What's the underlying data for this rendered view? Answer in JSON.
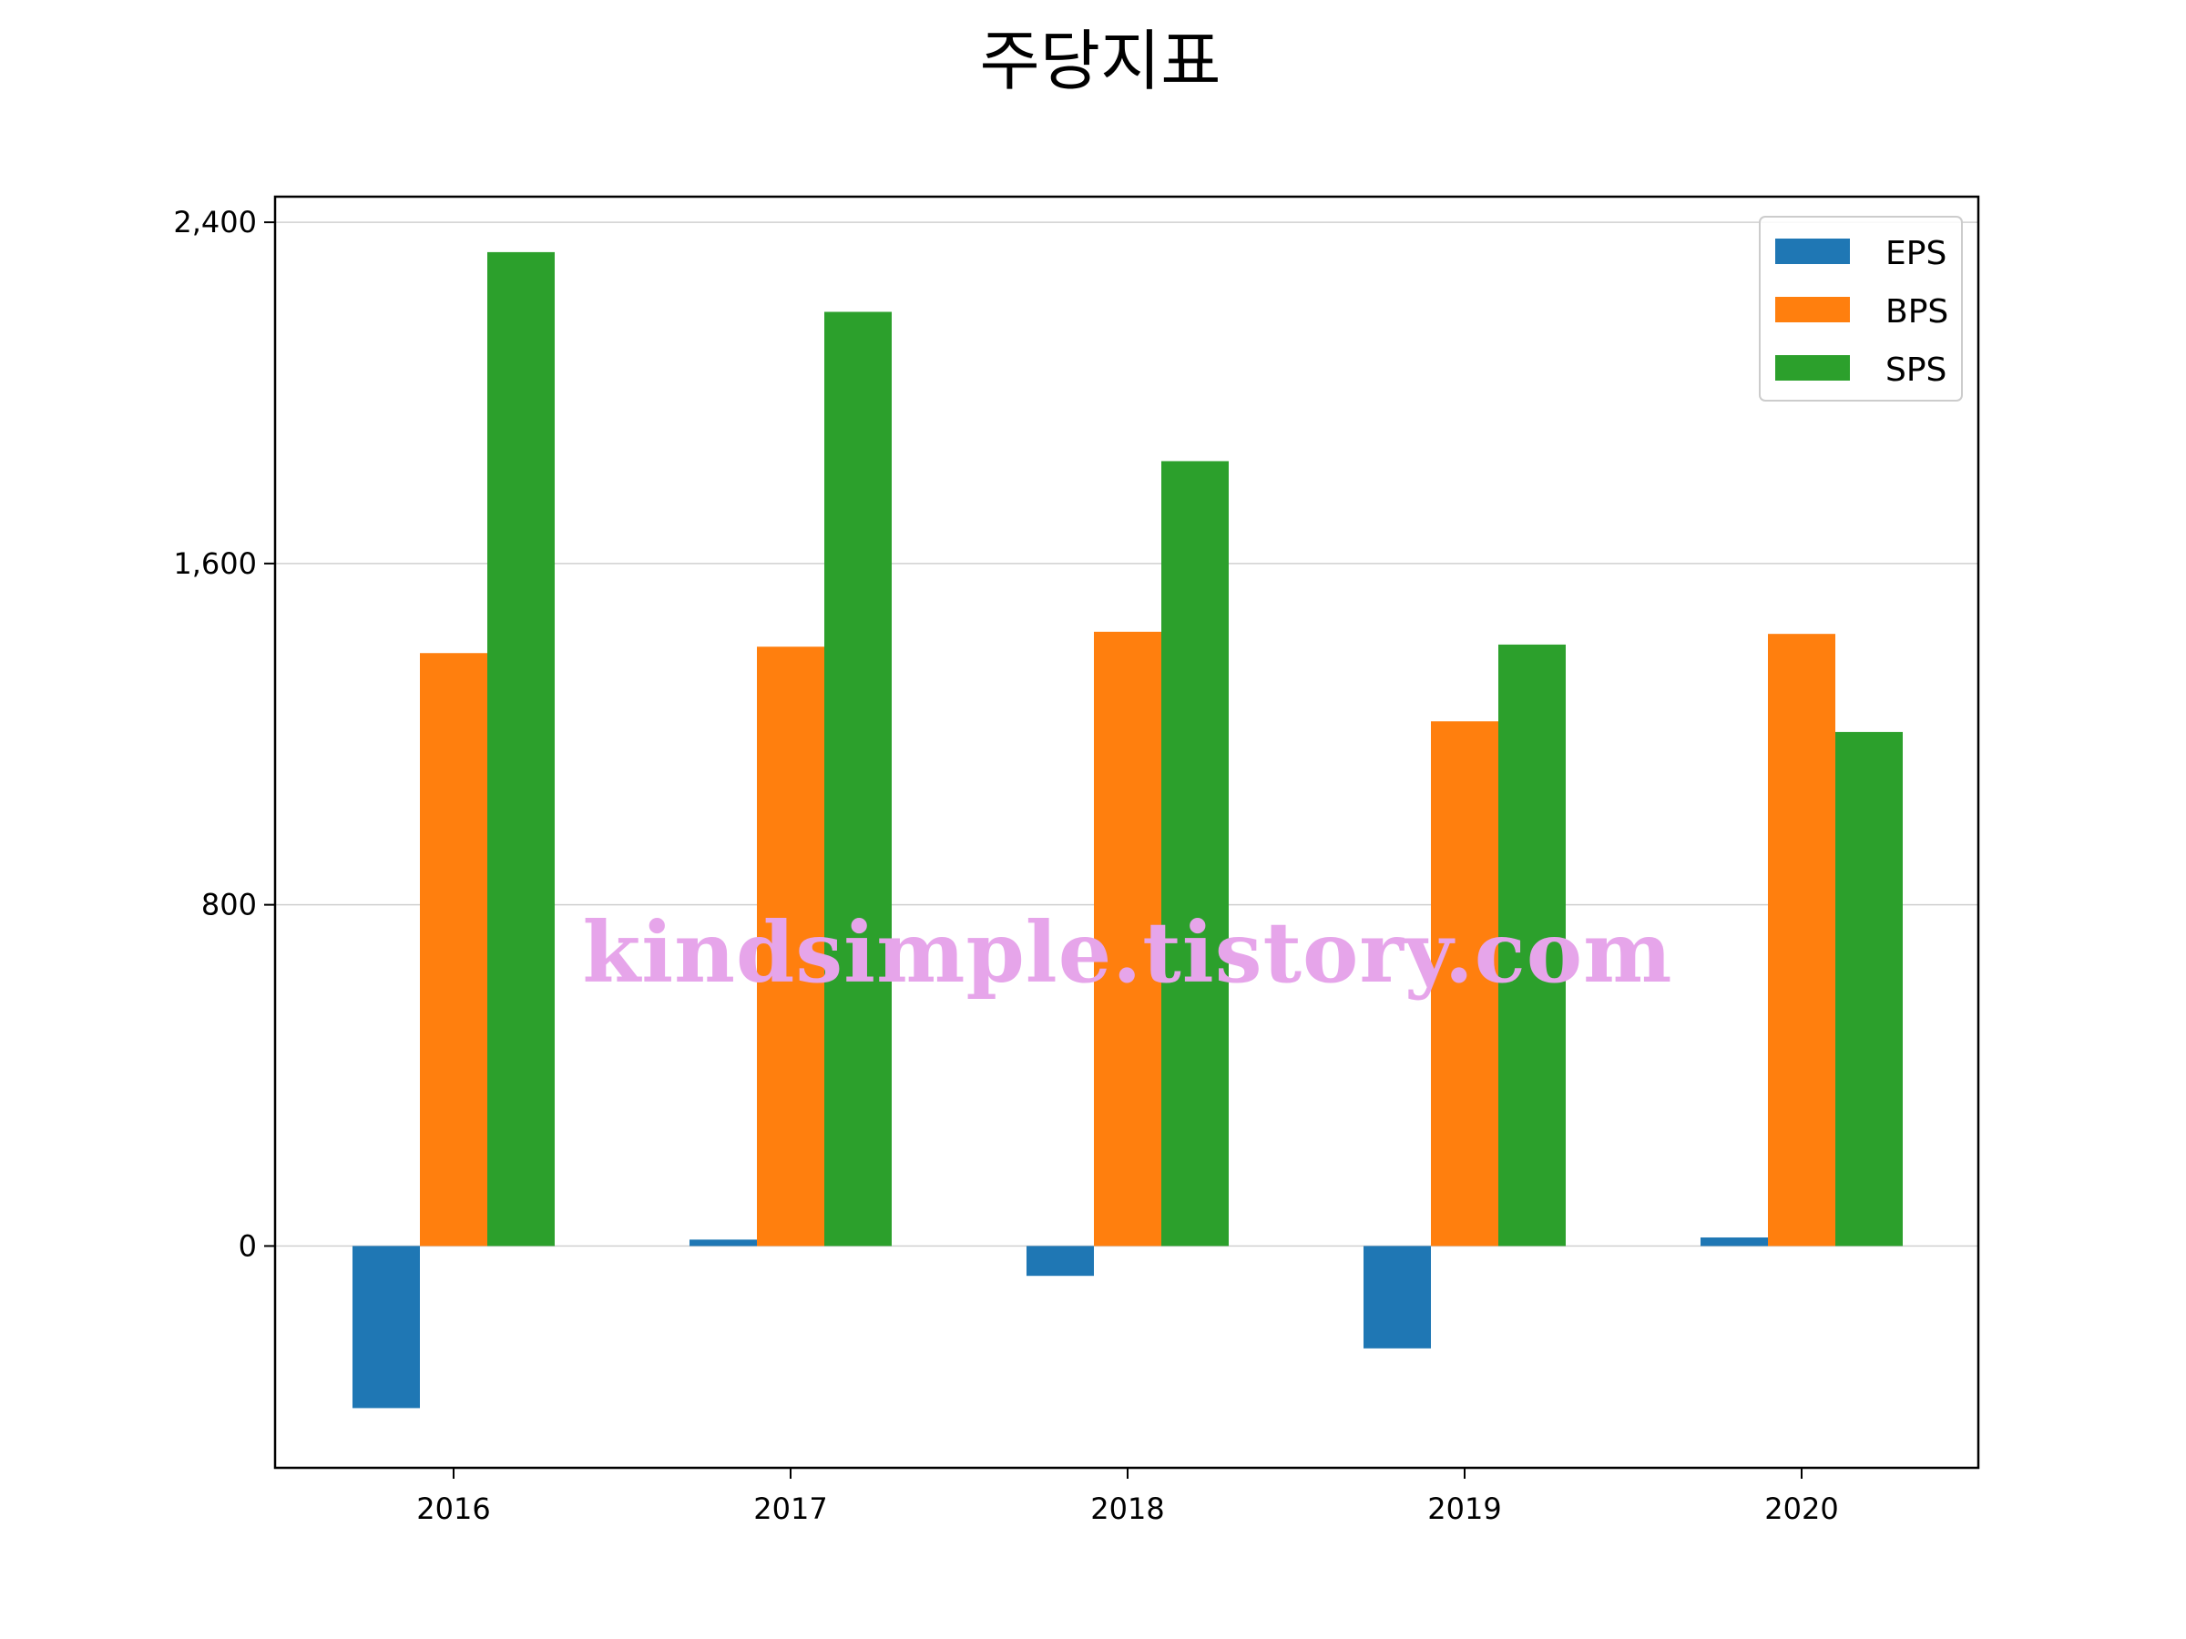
{
  "chart_data": {
    "type": "bar",
    "title": "주당지표",
    "xlabel": "",
    "ylabel": "",
    "categories": [
      "2016",
      "2017",
      "2018",
      "2019",
      "2020"
    ],
    "series": [
      {
        "name": "EPS",
        "color": "#1f77b4",
        "values": [
          -380,
          15,
          -70,
          -240,
          20
        ]
      },
      {
        "name": "BPS",
        "color": "#ff7f0e",
        "values": [
          1390,
          1405,
          1440,
          1230,
          1435
        ]
      },
      {
        "name": "SPS",
        "color": "#2ca02c",
        "values": [
          2330,
          2190,
          1840,
          1410,
          1205
        ]
      }
    ],
    "ylim": [
      -520,
      2460
    ],
    "yticks": [
      0,
      800,
      1600,
      2400
    ],
    "ytick_labels": [
      "0",
      "800",
      "1,600",
      "2,400"
    ],
    "grid": "y",
    "legend_position": "top-right"
  },
  "watermark": {
    "text": "kindsimple.tistory.com"
  }
}
